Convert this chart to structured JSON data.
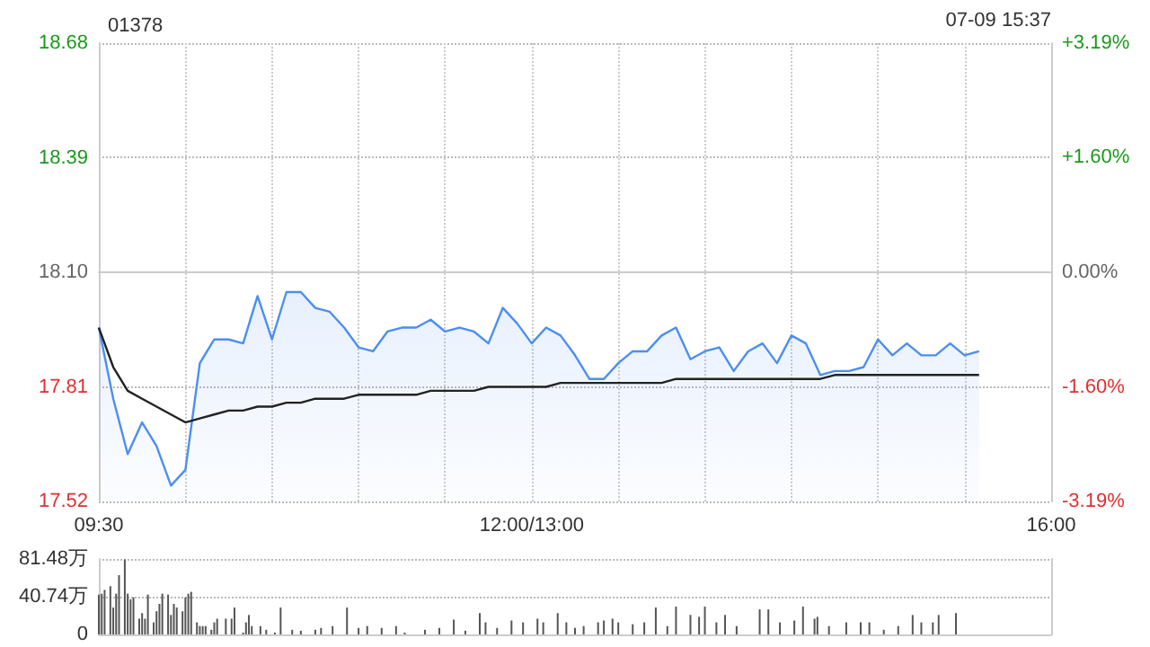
{
  "chart_data": [
    {
      "type": "area",
      "title": "01378",
      "annotations": [
        "07-09 15:37"
      ],
      "categories": [
        "09:30",
        null,
        null,
        null,
        null,
        null,
        null,
        null,
        null,
        null,
        null,
        null,
        null,
        null,
        null,
        null,
        null,
        null,
        null,
        null,
        null,
        null,
        null,
        null,
        null,
        null,
        null,
        null,
        null,
        null,
        "12:00/13:00",
        null,
        null,
        null,
        null,
        null,
        null,
        null,
        null,
        null,
        null,
        null,
        null,
        null,
        null,
        null,
        null,
        null,
        null,
        null,
        null,
        null,
        null,
        null,
        null,
        null,
        null,
        null,
        null,
        null,
        null,
        null,
        null,
        null,
        null,
        null,
        "16:00"
      ],
      "ylim": [
        17.52,
        18.68
      ],
      "yticks": [
        17.52,
        17.81,
        {
          "value": 18.1,
          "label": "18.10"
        },
        18.39,
        18.68
      ],
      "y2lim": [
        -3.19,
        3.19
      ],
      "y2ticks": [
        {
          "value": -3.19,
          "label": "-3.19%"
        },
        {
          "value": -1.6,
          "label": "-1.60%"
        },
        {
          "value": 0,
          "label": "0.00%"
        },
        {
          "value": 1.6,
          "label": "+1.60%"
        },
        {
          "value": 3.19,
          "label": "+3.19%"
        }
      ],
      "grid": true,
      "marker": "none",
      "series": [
        {
          "color": "#4d8ef0",
          "values": [
            17.96,
            17.78,
            17.64,
            17.72,
            17.66,
            17.56,
            17.6,
            17.87,
            17.93,
            17.93,
            17.92,
            18.04,
            17.93,
            18.05,
            18.05,
            18.01,
            18.0,
            17.96,
            17.91,
            17.9,
            17.95,
            17.96,
            17.96,
            17.98,
            17.95,
            17.96,
            17.95,
            17.92,
            18.01,
            17.97,
            17.92,
            17.96,
            17.94,
            17.89,
            17.83,
            17.83,
            17.87,
            17.9,
            17.9,
            17.94,
            17.96,
            17.88,
            17.9,
            17.91,
            17.85,
            17.9,
            17.92,
            17.87,
            17.94,
            17.92,
            17.84,
            17.85,
            17.85,
            17.86,
            17.93,
            17.89,
            17.92,
            17.89,
            17.89,
            17.92,
            17.89,
            17.9,
            null,
            null,
            null,
            null,
            null
          ]
        },
        {
          "type": "line",
          "color": "#222222",
          "values": [
            17.96,
            17.86,
            17.8,
            17.78,
            17.76,
            17.74,
            17.72,
            17.73,
            17.74,
            17.75,
            17.75,
            17.76,
            17.76,
            17.77,
            17.77,
            17.78,
            17.78,
            17.78,
            17.79,
            17.79,
            17.79,
            17.79,
            17.79,
            17.8,
            17.8,
            17.8,
            17.8,
            17.81,
            17.81,
            17.81,
            17.81,
            17.81,
            17.82,
            17.82,
            17.82,
            17.82,
            17.82,
            17.82,
            17.82,
            17.82,
            17.83,
            17.83,
            17.83,
            17.83,
            17.83,
            17.83,
            17.83,
            17.83,
            17.83,
            17.83,
            17.83,
            17.84,
            17.84,
            17.84,
            17.84,
            17.84,
            17.84,
            17.84,
            17.84,
            17.84,
            17.84,
            17.84,
            null,
            null,
            null,
            null,
            null
          ]
        }
      ]
    },
    {
      "type": "bar",
      "tick_labels": "y",
      "grid": "y",
      "categories": [
        null,
        null,
        null,
        null,
        null,
        null,
        null,
        null,
        null,
        null,
        null,
        null,
        null,
        null,
        null,
        null,
        null,
        null,
        null,
        null,
        null,
        null,
        null,
        null,
        null,
        null,
        null,
        null,
        null,
        null,
        null,
        null,
        null,
        null,
        null,
        null,
        null,
        null,
        null,
        null,
        null,
        null,
        null,
        null,
        null,
        null,
        null,
        null,
        null,
        null,
        null,
        null,
        null,
        null,
        null,
        null,
        null,
        null,
        null,
        null,
        null,
        null,
        null,
        null,
        null,
        null,
        null,
        null,
        null,
        null,
        null,
        null,
        null,
        null,
        null,
        null,
        null,
        null,
        null,
        null,
        null,
        null,
        null,
        null,
        null,
        null,
        null,
        null,
        null,
        null,
        null,
        null,
        null,
        null,
        null,
        null,
        null,
        null,
        null,
        null,
        null,
        null,
        null,
        null,
        null,
        null,
        null,
        null,
        null,
        null,
        null,
        null,
        null,
        null,
        null,
        null,
        null,
        null,
        null,
        null,
        null,
        null,
        null,
        null,
        null,
        null,
        null,
        null,
        null,
        null,
        null,
        null,
        null,
        null,
        null,
        null,
        null,
        null,
        null,
        null,
        null,
        null,
        null,
        null,
        null,
        null,
        null,
        null,
        null,
        null,
        null,
        null,
        null,
        null,
        null,
        null,
        null,
        null,
        null,
        null,
        null,
        null,
        null,
        null,
        null,
        null,
        null,
        null,
        null,
        null,
        null,
        null,
        null,
        null,
        null,
        null,
        null,
        null,
        null,
        null,
        null,
        null,
        null,
        null,
        null,
        null,
        null,
        null,
        null,
        null,
        null,
        null,
        null,
        null,
        null,
        null,
        null,
        null,
        null,
        null,
        null,
        null,
        null,
        null,
        null,
        null,
        null,
        null,
        null,
        null,
        null,
        null,
        null,
        null,
        null,
        null,
        null,
        null,
        null,
        null,
        null,
        null,
        null,
        null,
        null,
        null,
        null,
        null,
        null,
        null,
        null,
        null,
        null,
        null,
        null,
        null,
        null,
        null,
        null,
        null,
        null,
        null,
        null,
        null,
        null,
        null,
        null,
        null,
        null,
        null,
        null,
        null,
        null,
        null,
        null,
        null,
        null,
        null,
        null,
        null,
        null,
        null,
        null,
        null,
        null,
        null,
        null,
        null,
        null,
        null,
        null,
        null,
        null,
        null,
        null,
        null,
        null,
        null,
        null,
        null,
        null,
        null,
        null,
        null,
        null,
        null,
        null,
        null,
        null,
        null,
        null,
        null,
        null,
        null,
        null,
        null,
        null,
        null,
        null,
        null,
        null,
        null,
        null,
        null,
        null,
        null,
        null,
        null,
        null,
        null,
        null,
        null,
        null,
        null,
        null,
        null,
        null,
        null,
        null,
        null,
        null,
        null,
        null,
        null,
        null,
        null,
        null,
        null,
        null,
        null,
        null
      ],
      "ylim": [
        0,
        81.48
      ],
      "yticks": [
        0,
        {
          "value": 40.74,
          "label": "40.74万"
        },
        {
          "value": 81.48,
          "label": "81.48万"
        }
      ],
      "series": [
        {
          "color": "#555555",
          "values": [
            43,
            44,
            48,
            null,
            52,
            29,
            44,
            64,
            null,
            81,
            44,
            38,
            40,
            null,
            17,
            23,
            17,
            43,
            null,
            13,
            25,
            33,
            44,
            null,
            43,
            21,
            33,
            29,
            null,
            25,
            40,
            44,
            46,
            null,
            13,
            9,
            9,
            9,
            null,
            5,
            13,
            17,
            null,
            null,
            17,
            null,
            17,
            29,
            null,
            null,
            2,
            13,
            21,
            9,
            null,
            null,
            9,
            null,
            5,
            null,
            null,
            2,
            null,
            29,
            null,
            null,
            null,
            5,
            null,
            null,
            4,
            null,
            null,
            null,
            null,
            5,
            null,
            7,
            null,
            null,
            null,
            9,
            null,
            null,
            null,
            null,
            29,
            null,
            null,
            null,
            7,
            null,
            null,
            9,
            null,
            null,
            null,
            null,
            7,
            null,
            null,
            null,
            null,
            9,
            null,
            null,
            2,
            null,
            null,
            null,
            null,
            null,
            null,
            5,
            null,
            null,
            null,
            null,
            7,
            null,
            null,
            null,
            null,
            16,
            null,
            null,
            null,
            4,
            null,
            null,
            null,
            null,
            23,
            null,
            13,
            null,
            null,
            null,
            7,
            null,
            null,
            null,
            null,
            15,
            null,
            null,
            null,
            13,
            null,
            null,
            null,
            null,
            17,
            null,
            13,
            null,
            null,
            null,
            null,
            23,
            null,
            null,
            13,
            null,
            null,
            7,
            null,
            null,
            9,
            null,
            null,
            null,
            null,
            13,
            null,
            15,
            null,
            null,
            17,
            null,
            13,
            null,
            null,
            null,
            null,
            11,
            null,
            null,
            null,
            13,
            null,
            null,
            null,
            29,
            null,
            null,
            null,
            9,
            null,
            null,
            30,
            null,
            null,
            null,
            null,
            21,
            null,
            null,
            19,
            null,
            30,
            null,
            null,
            null,
            13,
            null,
            null,
            21,
            null,
            null,
            null,
            9,
            null,
            null,
            null,
            null,
            null,
            null,
            null,
            27,
            null,
            null,
            27,
            null,
            null,
            null,
            13,
            null,
            null,
            null,
            null,
            15,
            null,
            null,
            30,
            null,
            null,
            null,
            17,
            19,
            null,
            null,
            null,
            9,
            null,
            null,
            null,
            null,
            null,
            13,
            null,
            null,
            null,
            null,
            13,
            null,
            null,
            13,
            null,
            null,
            null,
            null,
            5,
            null,
            null,
            null,
            null,
            9,
            null,
            null,
            null,
            null,
            21,
            null,
            null,
            13,
            null,
            null,
            null,
            13,
            null,
            21,
            null,
            null,
            null,
            null,
            null,
            23,
            null,
            null,
            null,
            null,
            null,
            null,
            null,
            null,
            null,
            null,
            null,
            null,
            null,
            null,
            null,
            null,
            null,
            null,
            null,
            null,
            null,
            null,
            null,
            null,
            null,
            null,
            null,
            null,
            null,
            null,
            null,
            null,
            null
          ]
        }
      ]
    }
  ]
}
